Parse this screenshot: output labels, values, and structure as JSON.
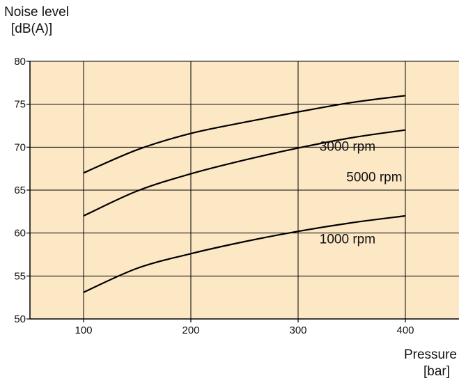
{
  "chart_data": {
    "type": "line",
    "title": "",
    "ylabel": "Noise level",
    "ylabel_unit": "[dB(A)]",
    "xlabel": "Pressure",
    "xlabel_unit": "[bar]",
    "xlim": [
      50,
      450
    ],
    "ylim": [
      50,
      80
    ],
    "xticks": [
      100,
      200,
      300,
      400
    ],
    "yticks": [
      50,
      55,
      60,
      65,
      70,
      75,
      80
    ],
    "grid": true,
    "colors": {
      "plot_background": "#fde8c6",
      "line": "#000000",
      "grid": "#000000"
    },
    "series": [
      {
        "name": "5000 rpm",
        "x": [
          100,
          150,
          200,
          250,
          300,
          350,
          400
        ],
        "y": [
          67,
          69.7,
          71.6,
          72.9,
          74.1,
          75.2,
          76
        ]
      },
      {
        "name": "3000 rpm",
        "x": [
          100,
          150,
          200,
          250,
          300,
          350,
          400
        ],
        "y": [
          62,
          64.9,
          66.9,
          68.5,
          69.9,
          71.1,
          72
        ]
      },
      {
        "name": "1000 rpm",
        "x": [
          100,
          150,
          200,
          250,
          300,
          350,
          400
        ],
        "y": [
          53.1,
          55.9,
          57.6,
          59,
          60.2,
          61.2,
          62
        ]
      }
    ]
  }
}
